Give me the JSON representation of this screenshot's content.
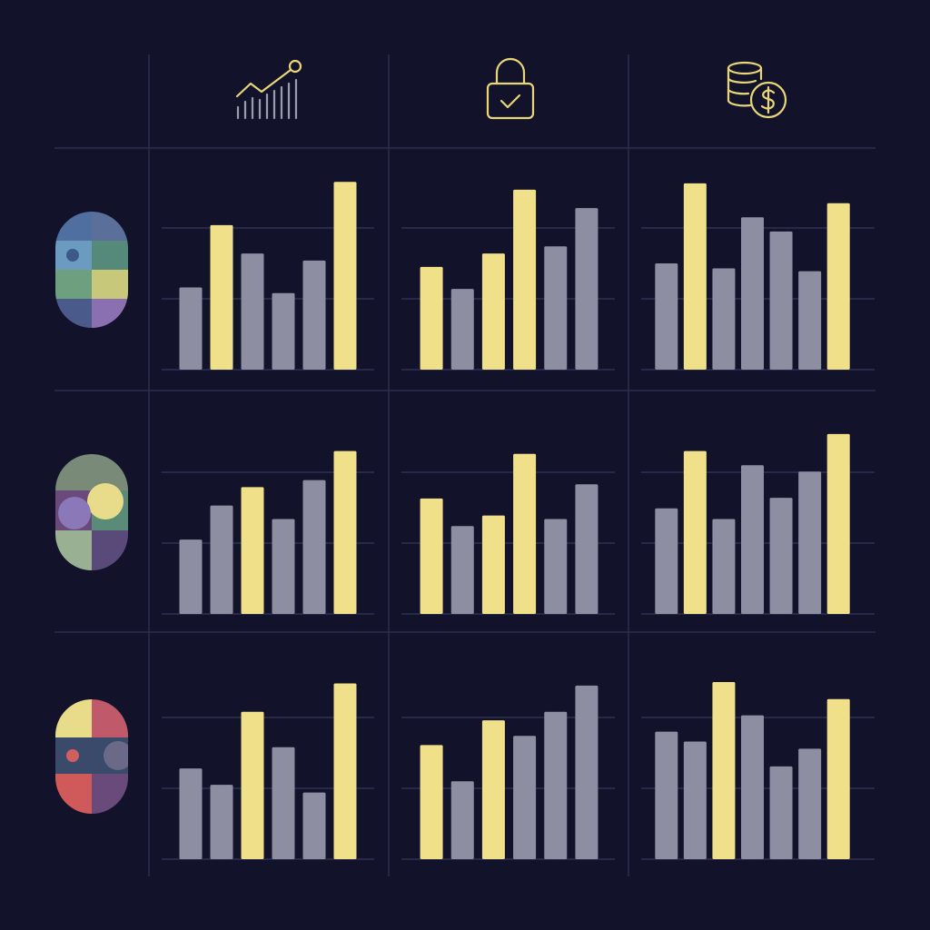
{
  "chart_data": [
    {
      "type": "bar",
      "values": [
        1.16,
        2.04,
        1.64,
        1.08,
        1.54,
        2.65
      ],
      "colors": [
        "#8e8ea2",
        "#f0e08a",
        "#8e8ea2",
        "#8e8ea2",
        "#8e8ea2",
        "#f0e08a"
      ],
      "ylim": [
        0,
        2.8
      ],
      "yticks": [
        0,
        1,
        2
      ],
      "grid": true
    },
    {
      "type": "bar",
      "values": [
        1.45,
        1.14,
        1.64,
        2.54,
        1.74,
        2.28
      ],
      "colors": [
        "#f0e08a",
        "#8e8ea2",
        "#f0e08a",
        "#f0e08a",
        "#8e8ea2",
        "#8e8ea2"
      ],
      "ylim": [
        0,
        2.8
      ],
      "yticks": [
        0,
        1,
        2
      ],
      "grid": true
    },
    {
      "type": "bar",
      "values": [
        1.5,
        2.63,
        1.43,
        2.15,
        1.95,
        1.39,
        2.35
      ],
      "colors": [
        "#8e8ea2",
        "#f0e08a",
        "#8e8ea2",
        "#8e8ea2",
        "#8e8ea2",
        "#8e8ea2",
        "#f0e08a"
      ],
      "ylim": [
        0,
        2.8
      ],
      "yticks": [
        0,
        1,
        2
      ],
      "grid": true
    },
    {
      "type": "bar",
      "values": [
        1.05,
        1.53,
        1.79,
        1.34,
        1.89,
        2.3
      ],
      "colors": [
        "#8e8ea2",
        "#8e8ea2",
        "#f0e08a",
        "#8e8ea2",
        "#8e8ea2",
        "#f0e08a"
      ],
      "ylim": [
        0,
        2.8
      ],
      "yticks": [
        0,
        1,
        2
      ],
      "grid": true
    },
    {
      "type": "bar",
      "values": [
        1.63,
        1.24,
        1.39,
        2.26,
        1.34,
        1.83
      ],
      "colors": [
        "#f0e08a",
        "#8e8ea2",
        "#f0e08a",
        "#f0e08a",
        "#8e8ea2",
        "#8e8ea2"
      ],
      "ylim": [
        0,
        2.8
      ],
      "yticks": [
        0,
        1,
        2
      ],
      "grid": true
    },
    {
      "type": "bar",
      "values": [
        1.49,
        2.3,
        1.34,
        2.1,
        1.64,
        2.01,
        2.54
      ],
      "colors": [
        "#8e8ea2",
        "#f0e08a",
        "#8e8ea2",
        "#8e8ea2",
        "#8e8ea2",
        "#8e8ea2",
        "#f0e08a"
      ],
      "ylim": [
        0,
        2.8
      ],
      "yticks": [
        0,
        1,
        2
      ],
      "grid": true
    },
    {
      "type": "bar",
      "values": [
        1.28,
        1.05,
        2.08,
        1.58,
        0.94,
        2.48
      ],
      "colors": [
        "#8e8ea2",
        "#8e8ea2",
        "#f0e08a",
        "#8e8ea2",
        "#8e8ea2",
        "#f0e08a"
      ],
      "ylim": [
        0,
        2.8
      ],
      "yticks": [
        0,
        1,
        2
      ],
      "grid": true
    },
    {
      "type": "bar",
      "values": [
        1.61,
        1.1,
        1.96,
        1.74,
        2.08,
        2.45
      ],
      "colors": [
        "#f0e08a",
        "#8e8ea2",
        "#f0e08a",
        "#8e8ea2",
        "#8e8ea2",
        "#8e8ea2"
      ],
      "ylim": [
        0,
        2.8
      ],
      "yticks": [
        0,
        1,
        2
      ],
      "grid": true
    },
    {
      "type": "bar",
      "values": [
        1.8,
        1.66,
        2.5,
        2.03,
        1.31,
        1.56,
        2.26
      ],
      "colors": [
        "#8e8ea2",
        "#8e8ea2",
        "#f0e08a",
        "#8e8ea2",
        "#8e8ea2",
        "#8e8ea2",
        "#f0e08a"
      ],
      "ylim": [
        0,
        2.8
      ],
      "yticks": [
        0,
        1,
        2
      ],
      "grid": true
    }
  ]
}
